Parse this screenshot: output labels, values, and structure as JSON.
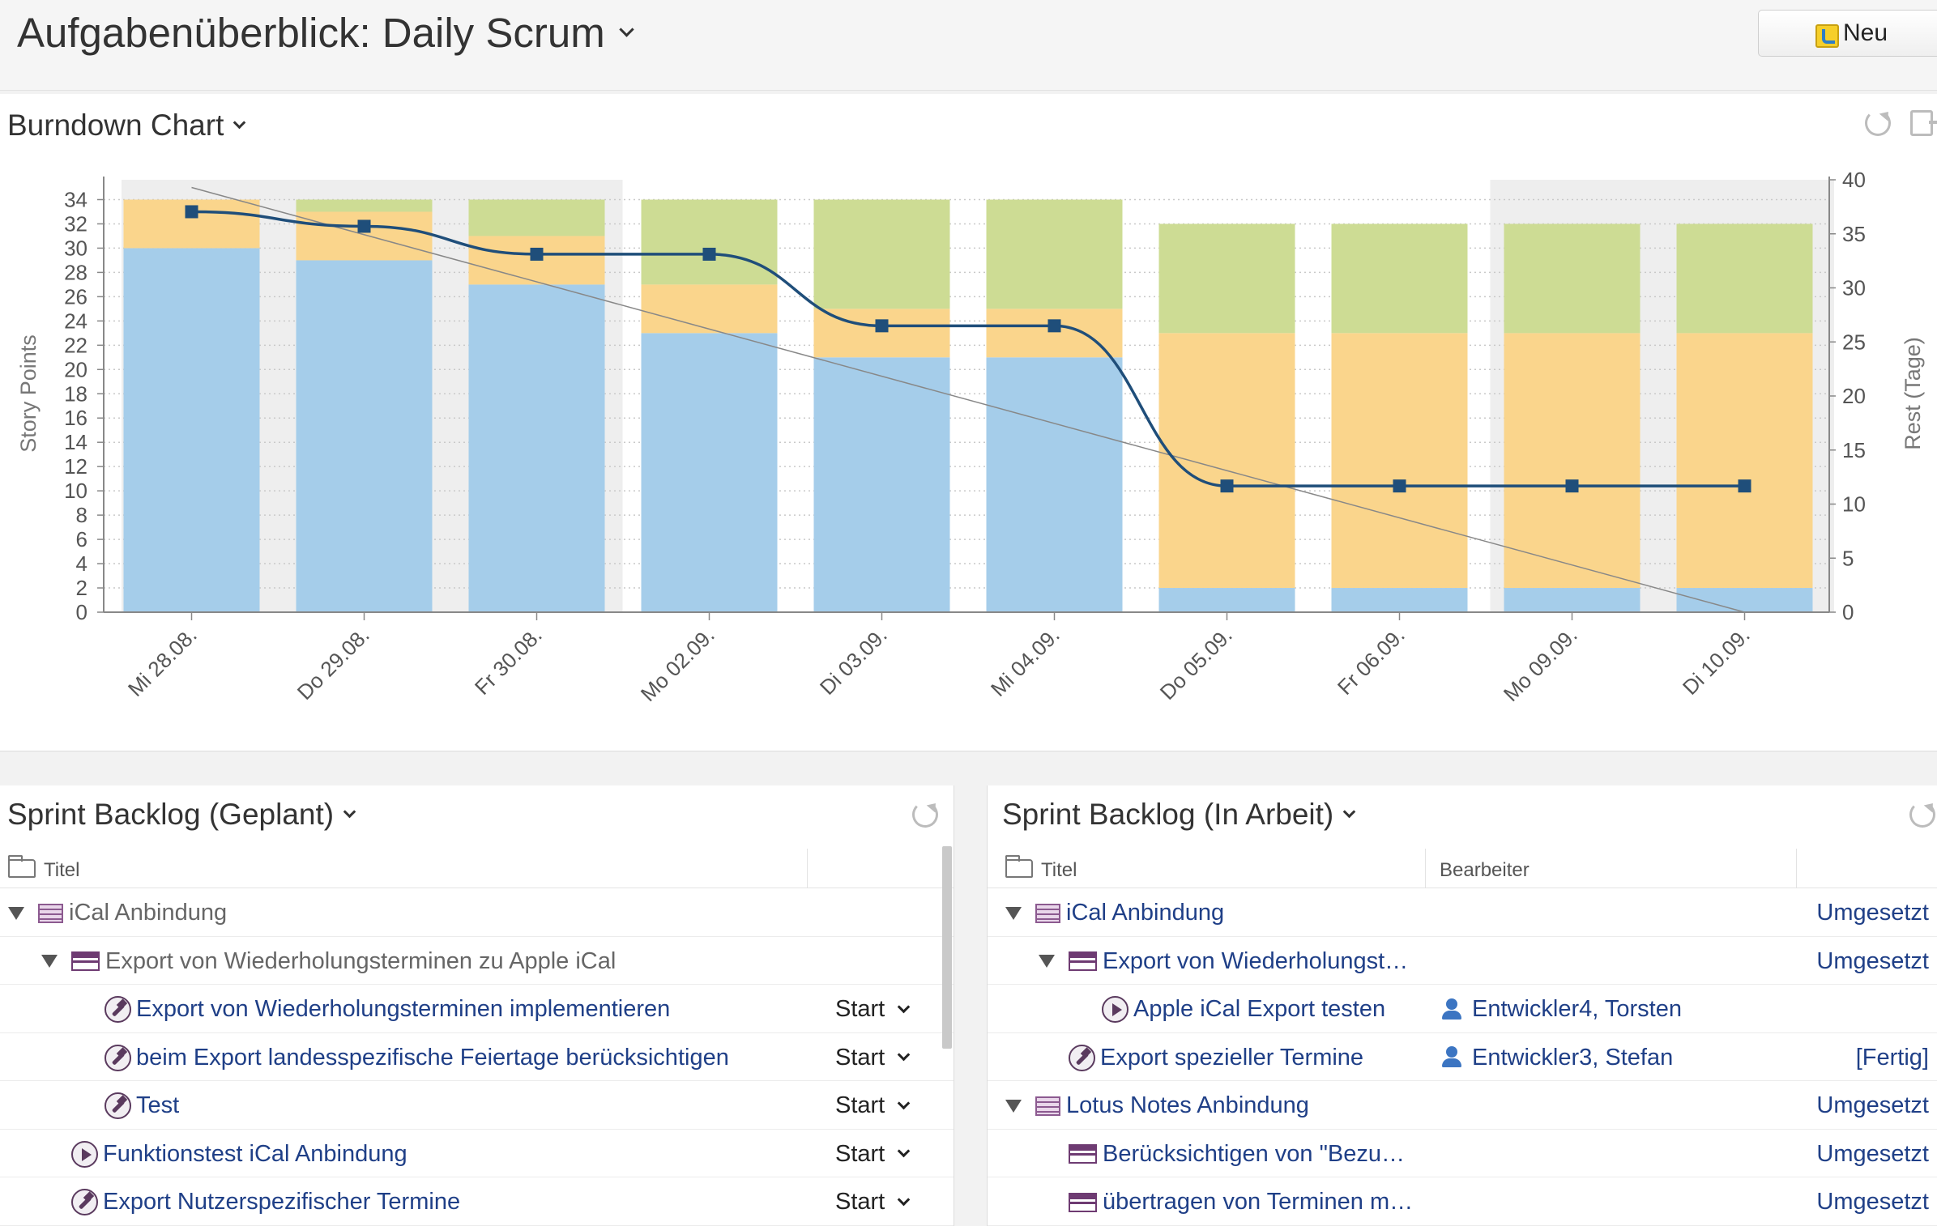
{
  "header": {
    "title": "Aufgabenüberblick: Daily Scrum",
    "new_label": "Neu"
  },
  "burndown": {
    "title": "Burndown Chart"
  },
  "chart_data": {
    "type": "bar",
    "title": "Burndown Chart",
    "ylabel": "Story Points",
    "y2label": "Rest (Tage)",
    "ylim": [
      0,
      35
    ],
    "y_ticks": [
      0,
      2,
      4,
      6,
      8,
      10,
      12,
      14,
      16,
      18,
      20,
      22,
      24,
      26,
      28,
      30,
      32,
      34
    ],
    "y2lim": [
      0,
      40
    ],
    "y2_ticks": [
      0,
      5,
      10,
      15,
      20,
      25,
      30,
      35,
      40
    ],
    "categories": [
      "Mi 28.08.",
      "Do 29.08.",
      "Fr 30.08.",
      "Mo 02.09.",
      "Di 03.09.",
      "Mi 04.09.",
      "Do 05.09.",
      "Fr 06.09.",
      "Mo 09.09.",
      "Di 10.09."
    ],
    "shaded_categories": [
      0,
      1,
      2,
      8,
      9
    ],
    "stacked": true,
    "series": [
      {
        "values": [
          30,
          29,
          27,
          23,
          21,
          21,
          2,
          2,
          2,
          2
        ],
        "color": "#a5cdea"
      },
      {
        "values": [
          4,
          4,
          4,
          4,
          4,
          4,
          21,
          21,
          21,
          21
        ],
        "color": "#fad58c"
      },
      {
        "values": [
          0,
          1,
          3,
          7,
          9,
          9,
          9,
          9,
          9,
          9
        ],
        "color": "#cddc94"
      }
    ],
    "line": {
      "values": [
        33,
        31.8,
        29.5,
        29.5,
        23.6,
        23.6,
        10.4,
        10.4,
        10.4,
        10.4
      ],
      "color": "#1f4e7a"
    },
    "ideal_line": {
      "values": [
        35,
        0
      ],
      "color": "#888888"
    },
    "grid": true
  },
  "planned": {
    "title": "Sprint Backlog (Geplant)",
    "col_title": "Titel",
    "rows": [
      {
        "level": 0,
        "icon": "story",
        "expand": true,
        "title": "iCal Anbindung",
        "status": ""
      },
      {
        "level": 1,
        "icon": "backlog",
        "expand": true,
        "title": "Export von Wiederholungsterminen zu Apple iCal",
        "status": ""
      },
      {
        "level": 2,
        "icon": "task",
        "expand": false,
        "title": "Export von Wiederholungsterminen implementieren",
        "status": "Start"
      },
      {
        "level": 2,
        "icon": "task",
        "expand": false,
        "title": "beim Export landesspezifische Feiertage berücksichtigen",
        "status": "Start"
      },
      {
        "level": 2,
        "icon": "task",
        "expand": false,
        "title": "Test",
        "status": "Start"
      },
      {
        "level": 1,
        "icon": "test",
        "expand": false,
        "title": "Funktionstest iCal Anbindung",
        "status": "Start"
      },
      {
        "level": 1,
        "icon": "task",
        "expand": false,
        "title": "Export Nutzerspezifischer Termine",
        "status": "Start"
      }
    ]
  },
  "active": {
    "title": "Sprint Backlog (In Arbeit)",
    "col_title": "Titel",
    "col_assignee": "Bearbeiter",
    "rows": [
      {
        "level": 0,
        "icon": "story",
        "expand": true,
        "title": "iCal Anbindung",
        "assignee": "",
        "status": "Umgesetzt"
      },
      {
        "level": 1,
        "icon": "backlog",
        "expand": true,
        "title": "Export von Wiederholungst…",
        "assignee": "",
        "status": "Umgesetzt"
      },
      {
        "level": 2,
        "icon": "test",
        "expand": false,
        "title": "Apple iCal Export testen",
        "assignee": "Entwickler4, Torsten",
        "status": ""
      },
      {
        "level": 1,
        "icon": "task",
        "expand": false,
        "title": "Export spezieller Termine",
        "assignee": "Entwickler3, Stefan",
        "status": "[Fertig]"
      },
      {
        "level": 0,
        "icon": "story",
        "expand": true,
        "title": "Lotus Notes Anbindung",
        "assignee": "",
        "status": "Umgesetzt"
      },
      {
        "level": 1,
        "icon": "backlog",
        "expand": false,
        "title": "Berücksichtigen von \"Bezu…",
        "assignee": "",
        "status": "Umgesetzt"
      },
      {
        "level": 1,
        "icon": "backlog",
        "expand": false,
        "title": "übertragen von Terminen m…",
        "assignee": "",
        "status": "Umgesetzt"
      }
    ]
  }
}
